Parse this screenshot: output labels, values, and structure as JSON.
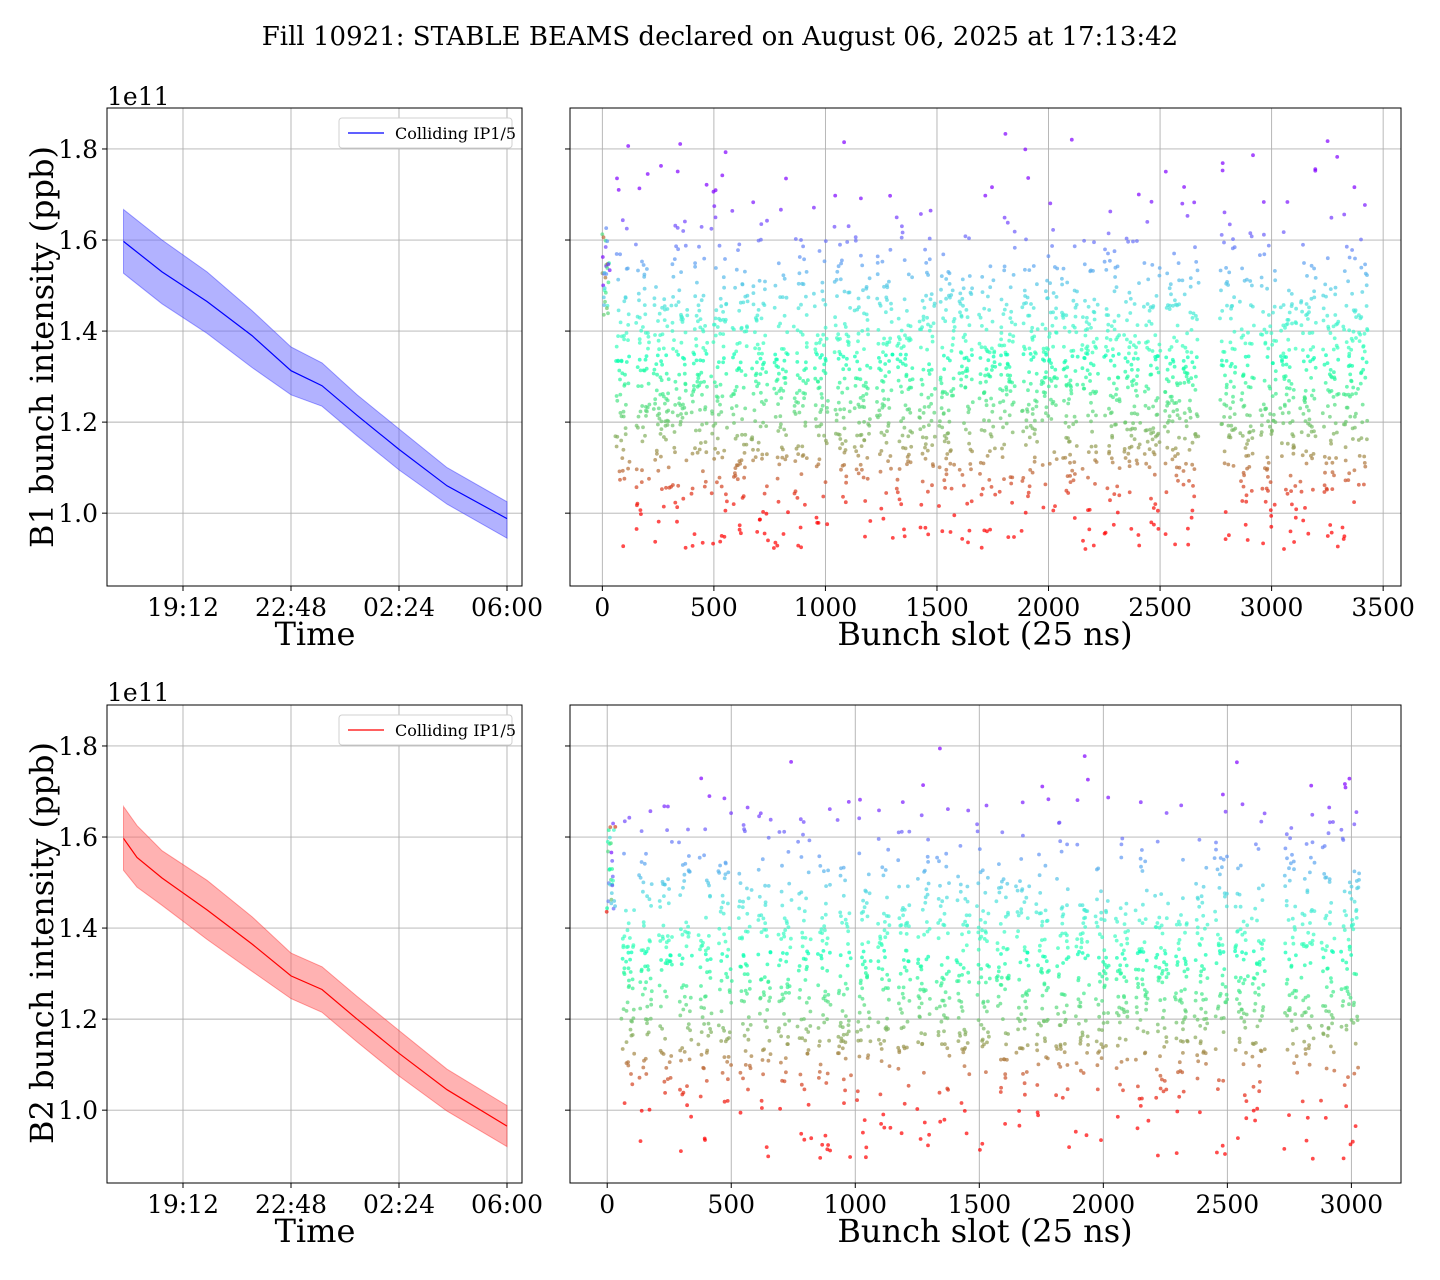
{
  "suptitle": "Fill 10921: STABLE BEAMS declared on August 06, 2025 at 17:13:42",
  "colors": {
    "b1_line": "#0000ff",
    "b1_band": "#6666ff",
    "b2_line": "#ff0000",
    "b2_band": "#ff6666",
    "grid": "#b0b0b0"
  },
  "chart_data": [
    {
      "type": "area",
      "id": "b1-time",
      "ylabel": "B1 bunch intensity (ppb)",
      "xlabel": "Time",
      "scale_label": "1e11",
      "x_ticks": [
        "19:12",
        "22:48",
        "02:24",
        "06:00"
      ],
      "y_ticks": [
        "1.0",
        "1.2",
        "1.4",
        "1.6",
        "1.8"
      ],
      "ylim": [
        0.84,
        1.89
      ],
      "xlim": [
        "2025-08-06 16:40",
        "2025-08-07 06:30"
      ],
      "grid": true,
      "legend": "top-right",
      "series": [
        {
          "name": "Colliding IP1/5",
          "x": [
            "2025-08-06 17:13",
            "2025-08-06 18:30",
            "2025-08-06 20:00",
            "2025-08-06 21:30",
            "2025-08-06 22:48",
            "2025-08-06 23:50",
            "2025-08-07 01:00",
            "2025-08-07 02:24",
            "2025-08-07 04:00",
            "2025-08-07 06:00"
          ],
          "mean": [
            1.597,
            1.53,
            1.465,
            1.39,
            1.313,
            1.28,
            1.215,
            1.14,
            1.06,
            0.988
          ],
          "lower": [
            1.527,
            1.46,
            1.395,
            1.32,
            1.26,
            1.235,
            1.17,
            1.095,
            1.02,
            0.945
          ],
          "upper": [
            1.667,
            1.6,
            1.53,
            1.445,
            1.365,
            1.33,
            1.26,
            1.185,
            1.1,
            1.025
          ]
        }
      ]
    },
    {
      "type": "scatter",
      "id": "b1-slots",
      "xlabel": "Bunch slot (25 ns)",
      "x_ticks": [
        "0",
        "500",
        "1000",
        "1500",
        "2000",
        "2500",
        "3000",
        "3500"
      ],
      "xlim": [
        -145,
        3580
      ],
      "ylim": [
        0.84,
        1.89
      ],
      "grid": true,
      "colormap": "rainbow",
      "y_range": [
        0.92,
        1.84
      ],
      "y_center": 1.3,
      "slot_max": 3430,
      "trains": [
        [
          0,
          30
        ],
        [
          60,
          120
        ],
        [
          150,
          210
        ],
        [
          230,
          300
        ],
        [
          310,
          380
        ],
        [
          400,
          470
        ],
        [
          490,
          560
        ],
        [
          580,
          650
        ],
        [
          670,
          740
        ],
        [
          770,
          830
        ],
        [
          860,
          920
        ],
        [
          950,
          1010
        ],
        [
          1040,
          1110
        ],
        [
          1130,
          1200
        ],
        [
          1230,
          1300
        ],
        [
          1320,
          1390
        ],
        [
          1420,
          1490
        ],
        [
          1510,
          1580
        ],
        [
          1600,
          1660
        ],
        [
          1690,
          1760
        ],
        [
          1780,
          1850
        ],
        [
          1880,
          1950
        ],
        [
          1970,
          2040
        ],
        [
          2060,
          2130
        ],
        [
          2150,
          2220
        ],
        [
          2250,
          2320
        ],
        [
          2340,
          2410
        ],
        [
          2430,
          2500
        ],
        [
          2520,
          2590
        ],
        [
          2600,
          2670
        ],
        [
          2770,
          2840
        ],
        [
          2860,
          2920
        ],
        [
          2950,
          3020
        ],
        [
          3040,
          3110
        ],
        [
          3130,
          3200
        ],
        [
          3230,
          3300
        ],
        [
          3320,
          3380
        ],
        [
          3390,
          3430
        ]
      ],
      "points_per_slot": 1
    },
    {
      "type": "area",
      "id": "b2-time",
      "ylabel": "B2 bunch intensity (ppb)",
      "xlabel": "Time",
      "scale_label": "1e11",
      "x_ticks": [
        "19:12",
        "22:48",
        "02:24",
        "06:00"
      ],
      "y_ticks": [
        "1.0",
        "1.2",
        "1.4",
        "1.6",
        "1.8"
      ],
      "ylim": [
        0.84,
        1.89
      ],
      "xlim": [
        "2025-08-06 16:40",
        "2025-08-07 06:30"
      ],
      "grid": true,
      "legend": "top-right",
      "series": [
        {
          "name": "Colliding IP1/5",
          "x": [
            "2025-08-06 17:13",
            "2025-08-06 17:40",
            "2025-08-06 18:30",
            "2025-08-06 20:00",
            "2025-08-06 21:30",
            "2025-08-06 22:48",
            "2025-08-06 23:50",
            "2025-08-07 01:00",
            "2025-08-07 02:24",
            "2025-08-07 04:00",
            "2025-08-07 06:00"
          ],
          "mean": [
            1.597,
            1.555,
            1.51,
            1.44,
            1.365,
            1.295,
            1.265,
            1.2,
            1.125,
            1.045,
            0.965
          ],
          "lower": [
            1.527,
            1.49,
            1.45,
            1.375,
            1.305,
            1.245,
            1.215,
            1.15,
            1.075,
            0.998,
            0.92
          ],
          "upper": [
            1.667,
            1.625,
            1.57,
            1.505,
            1.425,
            1.345,
            1.315,
            1.25,
            1.175,
            1.09,
            1.01
          ]
        }
      ]
    },
    {
      "type": "scatter",
      "id": "b2-slots",
      "xlabel": "Bunch slot (25 ns)",
      "x_ticks": [
        "0",
        "500",
        "1000",
        "1500",
        "2000",
        "2500",
        "3000"
      ],
      "xlim": [
        -150,
        3200
      ],
      "ylim": [
        0.84,
        1.89
      ],
      "grid": true,
      "colormap": "rainbow",
      "y_range": [
        0.89,
        1.81
      ],
      "y_center": 1.3,
      "slot_max": 3030,
      "trains": [
        [
          0,
          30
        ],
        [
          60,
          110
        ],
        [
          130,
          180
        ],
        [
          210,
          260
        ],
        [
          290,
          340
        ],
        [
          370,
          420
        ],
        [
          450,
          500
        ],
        [
          530,
          580
        ],
        [
          610,
          660
        ],
        [
          690,
          740
        ],
        [
          770,
          820
        ],
        [
          850,
          900
        ],
        [
          930,
          980
        ],
        [
          1010,
          1060
        ],
        [
          1090,
          1140
        ],
        [
          1170,
          1220
        ],
        [
          1250,
          1300
        ],
        [
          1330,
          1380
        ],
        [
          1410,
          1460
        ],
        [
          1490,
          1540
        ],
        [
          1570,
          1620
        ],
        [
          1650,
          1700
        ],
        [
          1730,
          1780
        ],
        [
          1810,
          1860
        ],
        [
          1890,
          1940
        ],
        [
          1970,
          2020
        ],
        [
          2050,
          2100
        ],
        [
          2130,
          2180
        ],
        [
          2210,
          2260
        ],
        [
          2290,
          2340
        ],
        [
          2370,
          2420
        ],
        [
          2450,
          2500
        ],
        [
          2530,
          2580
        ],
        [
          2600,
          2650
        ],
        [
          2730,
          2780
        ],
        [
          2800,
          2850
        ],
        [
          2880,
          2930
        ],
        [
          2960,
          3030
        ]
      ],
      "points_per_slot": 1
    }
  ]
}
